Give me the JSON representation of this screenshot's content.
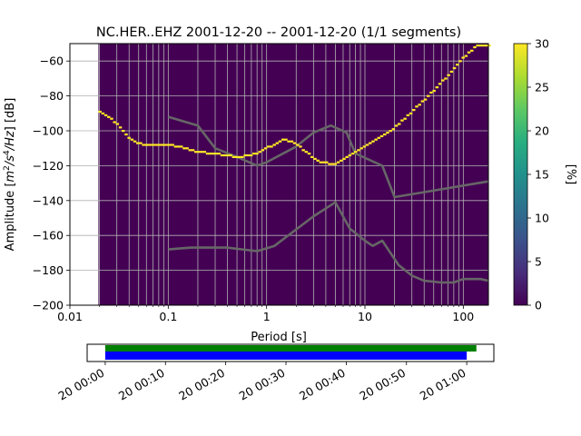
{
  "title": "NC.HER..EHZ   2001-12-20 -- 2001-12-20  (1/1 segments)",
  "chart_data": [
    {
      "type": "heatmap",
      "subtype": "ppsd",
      "xlabel": "Period [s]",
      "ylabel_parts": [
        "Amplitude [",
        "m",
        "2",
        "/s",
        "4",
        "/Hz",
        "] [dB]"
      ],
      "xscale": "log",
      "xlim": [
        0.01,
        180
      ],
      "ylim": [
        -200,
        -50
      ],
      "x_ticks": [
        0.01,
        0.1,
        1,
        10,
        100
      ],
      "x_tick_labels": [
        "0.01",
        "0.1",
        "1",
        "10",
        "100"
      ],
      "y_ticks": [
        -200,
        -180,
        -160,
        -140,
        -120,
        -100,
        -80,
        -60
      ],
      "y_tick_labels": [
        "−200",
        "−180",
        "−160",
        "−140",
        "−120",
        "−100",
        "−80",
        "−60"
      ],
      "data_xlim": [
        0.0195,
        180
      ],
      "background_value": 0,
      "grid": true,
      "colormap": "viridis",
      "colors": {
        "background": "#440154",
        "trace": "#fde725",
        "noise_model": "#666666",
        "grid": "#b0b0b0"
      },
      "colorbar": {
        "label": "[%]",
        "range": [
          0,
          30
        ],
        "ticks": [
          0,
          5,
          10,
          15,
          20,
          25,
          30
        ],
        "tick_labels": [
          "0",
          "5",
          "10",
          "15",
          "20",
          "25",
          "30"
        ]
      },
      "trace": {
        "name": "",
        "points": [
          [
            0.0195,
            -89
          ],
          [
            0.025,
            -92
          ],
          [
            0.03,
            -96
          ],
          [
            0.04,
            -104
          ],
          [
            0.05,
            -107
          ],
          [
            0.06,
            -108
          ],
          [
            0.1,
            -108
          ],
          [
            0.15,
            -110
          ],
          [
            0.2,
            -112
          ],
          [
            0.3,
            -113
          ],
          [
            0.5,
            -115
          ],
          [
            0.7,
            -114
          ],
          [
            1.0,
            -110
          ],
          [
            1.5,
            -105
          ],
          [
            2.0,
            -107
          ],
          [
            2.5,
            -112
          ],
          [
            3.5,
            -118
          ],
          [
            5.0,
            -119
          ],
          [
            7.0,
            -114
          ],
          [
            10.0,
            -109
          ],
          [
            15.0,
            -103
          ],
          [
            20.0,
            -98
          ],
          [
            30.0,
            -89
          ],
          [
            50.0,
            -77
          ],
          [
            70.0,
            -68
          ],
          [
            100.0,
            -58
          ],
          [
            140.0,
            -51
          ],
          [
            180.0,
            -51
          ]
        ]
      },
      "noise_models": [
        {
          "name": "",
          "points": [
            [
              0.1,
              -92
            ],
            [
              0.2,
              -97
            ],
            [
              0.3,
              -110
            ],
            [
              0.5,
              -115
            ],
            [
              0.8,
              -120
            ],
            [
              1.0,
              -118
            ],
            [
              2.0,
              -109
            ],
            [
              3.0,
              -101
            ],
            [
              4.5,
              -97
            ],
            [
              6.5,
              -101
            ],
            [
              8.0,
              -113
            ],
            [
              15.0,
              -120
            ],
            [
              20.0,
              -138
            ],
            [
              180.0,
              -129
            ]
          ]
        },
        {
          "name": "",
          "points": [
            [
              0.1,
              -168
            ],
            [
              0.17,
              -167
            ],
            [
              0.4,
              -167
            ],
            [
              0.8,
              -169
            ],
            [
              1.2,
              -166
            ],
            [
              3.0,
              -149
            ],
            [
              5.0,
              -141
            ],
            [
              7.0,
              -156
            ],
            [
              10.0,
              -163
            ],
            [
              12.0,
              -166
            ],
            [
              15.0,
              -163
            ],
            [
              22.0,
              -177
            ],
            [
              30.0,
              -183
            ],
            [
              40.0,
              -186
            ],
            [
              60.0,
              -187
            ],
            [
              80.0,
              -187
            ],
            [
              100.0,
              -185
            ],
            [
              150.0,
              -185
            ],
            [
              180.0,
              -186
            ]
          ]
        }
      ]
    },
    {
      "type": "timeline",
      "x_tick_labels": [
        "20 00:00",
        "20 00:10",
        "20 00:20",
        "20 00:30",
        "20 00:40",
        "20 00:50",
        "20 01:00"
      ],
      "x_tick_minutes": [
        0,
        10,
        20,
        30,
        40,
        50,
        60
      ],
      "xlim_minutes": [
        -3,
        64.5
      ],
      "bars": [
        {
          "name": "",
          "start_min": 0,
          "end_min": 61.6,
          "color": "#008000"
        },
        {
          "name": "",
          "start_min": 0,
          "end_min": 60.0,
          "color": "#0000ff"
        }
      ]
    }
  ]
}
